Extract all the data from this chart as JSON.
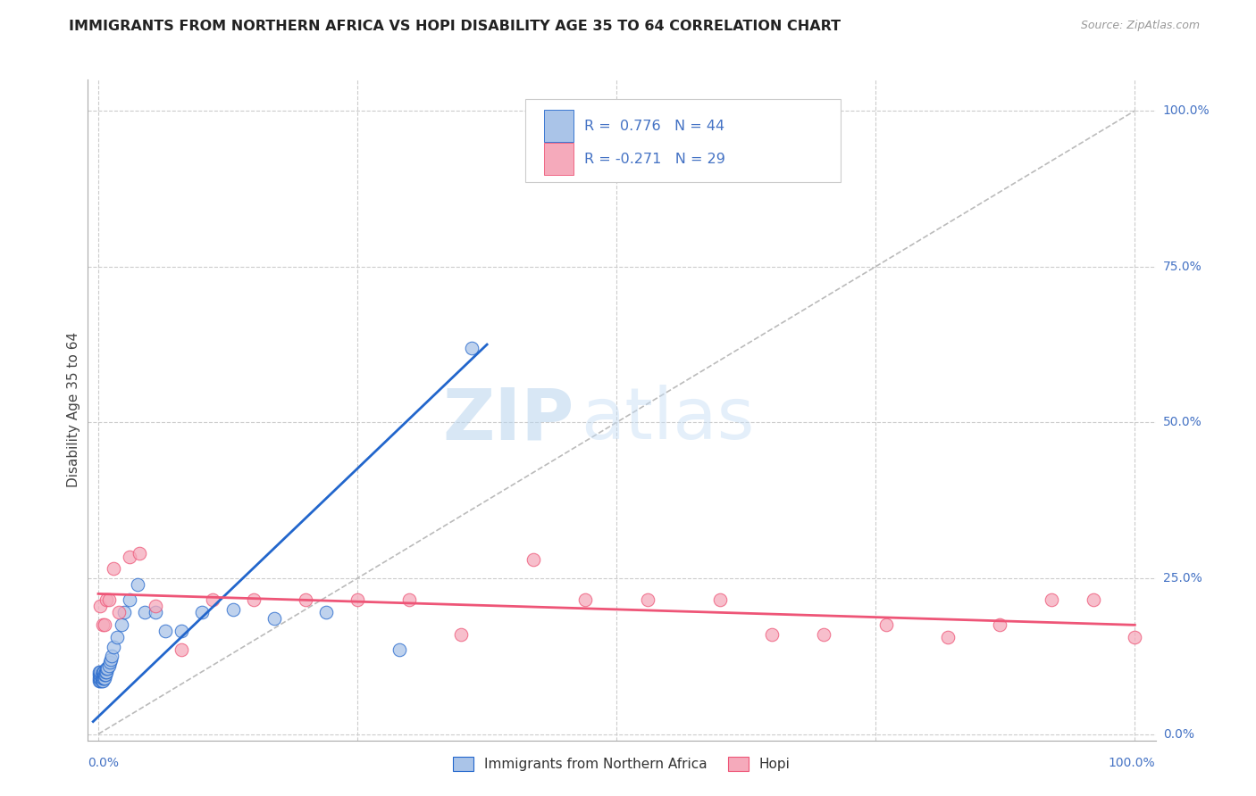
{
  "title": "IMMIGRANTS FROM NORTHERN AFRICA VS HOPI DISABILITY AGE 35 TO 64 CORRELATION CHART",
  "source": "Source: ZipAtlas.com",
  "ylabel": "Disability Age 35 to 64",
  "legend_label1": "Immigrants from Northern Africa",
  "legend_label2": "Hopi",
  "R1": 0.776,
  "N1": 44,
  "R2": -0.271,
  "N2": 29,
  "color_blue": "#aac4e8",
  "color_pink": "#f5aabb",
  "line_blue": "#2266cc",
  "line_pink": "#ee5577",
  "line_diag": "#bbbbbb",
  "blue_x": [
    0.001,
    0.001,
    0.001,
    0.001,
    0.002,
    0.002,
    0.002,
    0.002,
    0.003,
    0.003,
    0.003,
    0.004,
    0.004,
    0.004,
    0.005,
    0.005,
    0.005,
    0.006,
    0.006,
    0.007,
    0.007,
    0.008,
    0.008,
    0.009,
    0.01,
    0.011,
    0.012,
    0.013,
    0.015,
    0.018,
    0.022,
    0.025,
    0.03,
    0.038,
    0.045,
    0.055,
    0.065,
    0.08,
    0.1,
    0.13,
    0.17,
    0.22,
    0.29,
    0.36
  ],
  "blue_y": [
    0.085,
    0.09,
    0.095,
    0.1,
    0.085,
    0.09,
    0.095,
    0.1,
    0.085,
    0.09,
    0.095,
    0.085,
    0.09,
    0.1,
    0.09,
    0.095,
    0.1,
    0.09,
    0.095,
    0.095,
    0.1,
    0.1,
    0.105,
    0.105,
    0.11,
    0.115,
    0.12,
    0.125,
    0.14,
    0.155,
    0.175,
    0.195,
    0.215,
    0.24,
    0.195,
    0.195,
    0.165,
    0.165,
    0.195,
    0.2,
    0.185,
    0.195,
    0.135,
    0.62
  ],
  "pink_x": [
    0.002,
    0.004,
    0.006,
    0.008,
    0.01,
    0.015,
    0.02,
    0.03,
    0.04,
    0.055,
    0.08,
    0.11,
    0.15,
    0.2,
    0.25,
    0.3,
    0.35,
    0.42,
    0.47,
    0.53,
    0.6,
    0.65,
    0.7,
    0.76,
    0.82,
    0.87,
    0.92,
    0.96,
    1.0
  ],
  "pink_y": [
    0.205,
    0.175,
    0.175,
    0.215,
    0.215,
    0.265,
    0.195,
    0.285,
    0.29,
    0.205,
    0.135,
    0.215,
    0.215,
    0.215,
    0.215,
    0.215,
    0.16,
    0.28,
    0.215,
    0.215,
    0.215,
    0.16,
    0.16,
    0.175,
    0.155,
    0.175,
    0.215,
    0.215,
    0.155
  ],
  "blue_line_x": [
    -0.005,
    0.375
  ],
  "blue_line_y": [
    0.02,
    0.625
  ],
  "pink_line_x": [
    0.0,
    1.0
  ],
  "pink_line_y": [
    0.225,
    0.175
  ],
  "diag_line_x": [
    0.0,
    1.0
  ],
  "diag_line_y": [
    0.0,
    1.0
  ],
  "ytick_vals": [
    0.0,
    0.25,
    0.5,
    0.75,
    1.0
  ],
  "ytick_labels": [
    "0.0%",
    "25.0%",
    "50.0%",
    "75.0%",
    "100.0%"
  ],
  "xtick_vals": [
    0.0,
    0.25,
    0.5,
    0.75,
    1.0
  ],
  "xlim": [
    -0.01,
    1.02
  ],
  "ylim": [
    -0.01,
    1.05
  ],
  "watermark_zip": "ZIP",
  "watermark_atlas": "atlas"
}
